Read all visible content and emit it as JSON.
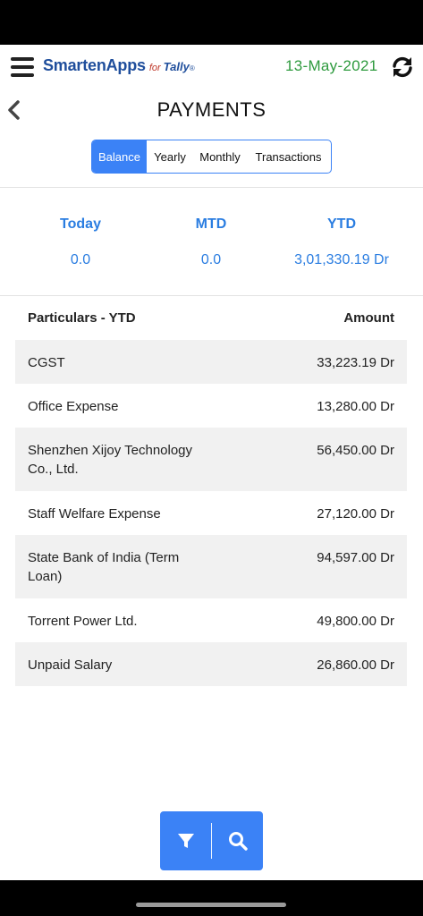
{
  "header": {
    "brand": "SmartenApps",
    "brand_for": "for",
    "brand_tally": "Tally",
    "brand_reg": "®",
    "date": "13-May-2021",
    "menu_icon": "hamburger-icon",
    "refresh_icon": "refresh-icon"
  },
  "page": {
    "title": "PAYMENTS",
    "back_icon": "chevron-left-icon"
  },
  "tabs": [
    {
      "label": "Balance",
      "active": true
    },
    {
      "label": "Yearly",
      "active": false
    },
    {
      "label": "Monthly",
      "active": false
    },
    {
      "label": "Transactions",
      "active": false
    }
  ],
  "summary": {
    "today_label": "Today",
    "today_value": "0.0",
    "mtd_label": "MTD",
    "mtd_value": "0.0",
    "ytd_label": "YTD",
    "ytd_value": "3,01,330.19 Dr"
  },
  "table": {
    "col_particulars": "Particulars - YTD",
    "col_amount": "Amount",
    "rows": [
      {
        "particular": "CGST",
        "amount": "33,223.19 Dr"
      },
      {
        "particular": "Office Expense",
        "amount": "13,280.00 Dr"
      },
      {
        "particular": "Shenzhen Xijoy Technology Co., Ltd.",
        "amount": "56,450.00 Dr"
      },
      {
        "particular": "Staff Welfare Expense",
        "amount": "27,120.00 Dr"
      },
      {
        "particular": "State Bank of India (Term Loan)",
        "amount": "94,597.00 Dr"
      },
      {
        "particular": "Torrent Power Ltd.",
        "amount": "49,800.00 Dr"
      },
      {
        "particular": "Unpaid Salary",
        "amount": "26,860.00 Dr"
      }
    ]
  },
  "fab": {
    "filter_icon": "filter-icon",
    "search_icon": "search-icon"
  },
  "colors": {
    "accent": "#3b82f6",
    "summary_text": "#2a7de1",
    "date": "#2e9a3e",
    "brand": "#1f4e9c",
    "row_shade": "#f1f1f1"
  }
}
